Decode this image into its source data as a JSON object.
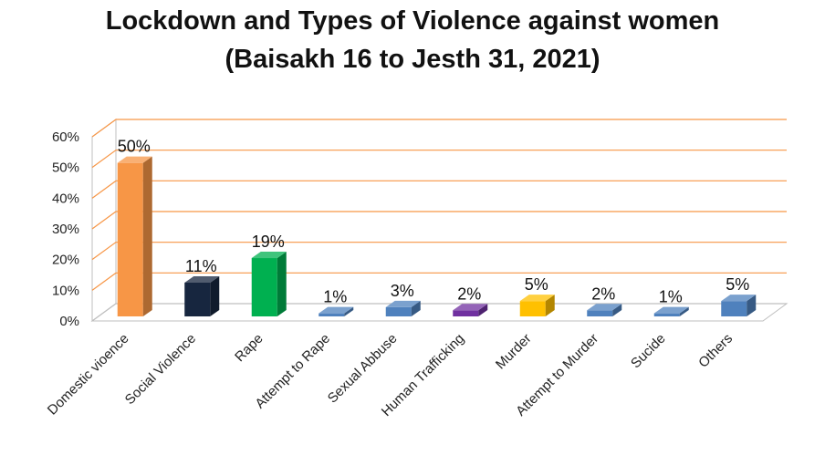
{
  "chart_data": {
    "type": "bar",
    "title": "Lockdown and Types of Violence against women",
    "subtitle": "(Baisakh 16 to Jesth 31, 2021)",
    "categories": [
      "Domestic vioence",
      "Social Violence",
      "Rape",
      "Attempt to Rape",
      "Sexual Abbuse",
      "Human Trafficking",
      "Murder",
      "Attempt to Murder",
      "Sucide",
      "Others"
    ],
    "values": [
      50,
      11,
      19,
      1,
      3,
      2,
      5,
      2,
      1,
      5
    ],
    "value_labels": [
      "50%",
      "11%",
      "19%",
      "1%",
      "3%",
      "2%",
      "5%",
      "2%",
      "1%",
      "5%"
    ],
    "bar_colors": [
      "#F79646",
      "#17263F",
      "#00B050",
      "#4F81BD",
      "#4F81BD",
      "#7030A0",
      "#FFC000",
      "#4F81BD",
      "#4F81BD",
      "#4F81BD"
    ],
    "ylim": [
      0,
      60
    ],
    "yticks": [
      0,
      10,
      20,
      30,
      40,
      50,
      60
    ],
    "ytick_labels": [
      "0%",
      "10%",
      "20%",
      "30%",
      "40%",
      "50%",
      "60%"
    ],
    "grid": true,
    "grid_color": "#F79646",
    "style": "3d-column"
  }
}
